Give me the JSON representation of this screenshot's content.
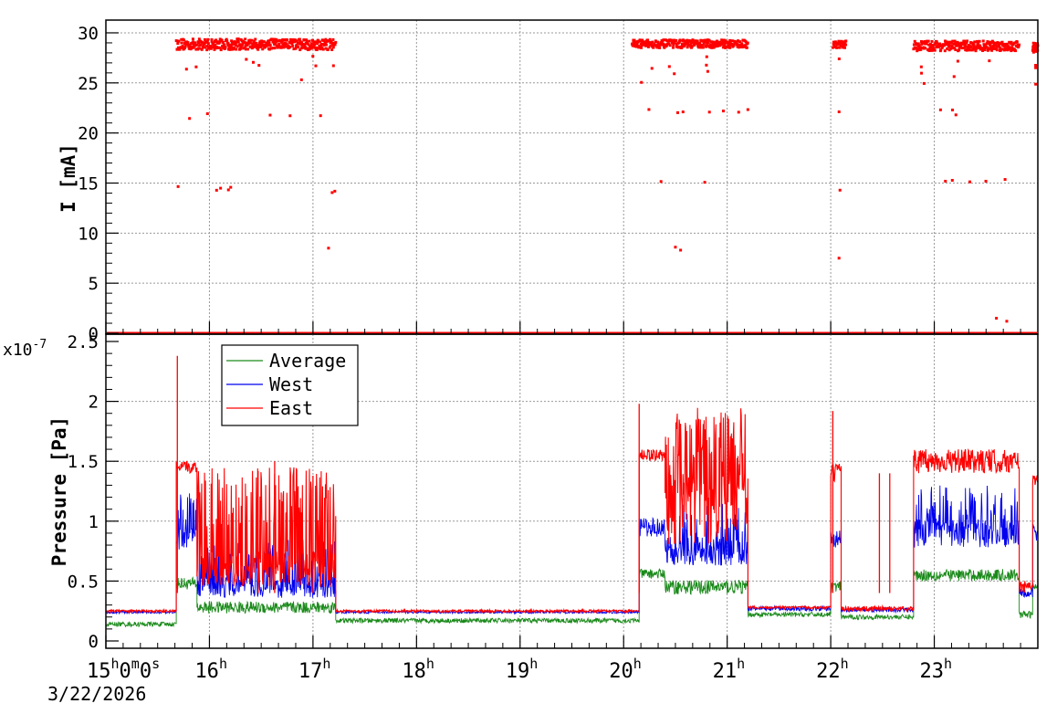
{
  "chart_data": [
    {
      "type": "scatter",
      "panel": "top",
      "ylabel": "I [mA]",
      "ylim": [
        0,
        31
      ],
      "yticks": [
        "0",
        "5",
        "10",
        "15",
        "20",
        "25",
        "30"
      ],
      "xlim_hours": [
        15,
        24
      ],
      "grid": true,
      "series": [
        {
          "color": "#ff0000",
          "segments": [
            {
              "x": [
                15.68,
                17.22
              ],
              "main_y": [
                28.3,
                29.4
              ],
              "sparse_y": [
                21.8,
                14.4
              ]
            },
            {
              "x": [
                20.08,
                21.2
              ],
              "main_y": [
                28.5,
                29.3
              ],
              "sparse_y": [
                22.0,
                14.8
              ]
            },
            {
              "x": [
                22.02,
                22.15
              ],
              "main_y": [
                28.5,
                29.2
              ],
              "sparse_y": [
                21.8,
                14.4
              ]
            },
            {
              "x": [
                22.8,
                23.82
              ],
              "main_y": [
                28.2,
                29.2
              ],
              "sparse_y": [
                22.0,
                15.5
              ]
            },
            {
              "x": [
                23.95,
                24.0
              ],
              "main_y": [
                28.0,
                29.0
              ],
              "sparse_y": [
                26.5
              ]
            }
          ],
          "outliers": [
            [
              17.15,
              8.5
            ],
            [
              20.5,
              8.6
            ],
            [
              20.55,
              8.3
            ],
            [
              22.08,
              7.5
            ],
            [
              23.6,
              1.5
            ],
            [
              23.7,
              1.2
            ]
          ],
          "baseline": 0
        }
      ]
    },
    {
      "type": "line",
      "panel": "bottom",
      "ylabel": "Pressure [Pa]",
      "yscale_label": "x10",
      "yscale_exp": "-7",
      "ylim": [
        0,
        2.5
      ],
      "yticks": [
        "0",
        "0.5",
        "1",
        "1.5",
        "2",
        "2.5"
      ],
      "xlim_hours": [
        15,
        24
      ],
      "xticks": [
        {
          "hour": 15,
          "label": "15",
          "sup": "h",
          "extra": "0",
          "sup2": "m",
          "extra2": "0",
          "sup3": "s"
        },
        {
          "hour": 16,
          "label": "16",
          "sup": "h"
        },
        {
          "hour": 17,
          "label": "17",
          "sup": "h"
        },
        {
          "hour": 18,
          "label": "18",
          "sup": "h"
        },
        {
          "hour": 19,
          "label": "19",
          "sup": "h"
        },
        {
          "hour": 20,
          "label": "20",
          "sup": "h"
        },
        {
          "hour": 21,
          "label": "21",
          "sup": "h"
        },
        {
          "hour": 22,
          "label": "22",
          "sup": "h"
        },
        {
          "hour": 23,
          "label": "23",
          "sup": "h"
        }
      ],
      "date_label": "3/22/2026",
      "grid": true,
      "legend_position": "top-left",
      "series": [
        {
          "name": "Average",
          "color": "#1a8a1a",
          "segments": [
            [
              15.0,
              15.68,
              0.14,
              0.02
            ],
            [
              15.68,
              15.88,
              0.48,
              0.05
            ],
            [
              15.88,
              17.22,
              0.28,
              0.05
            ],
            [
              17.22,
              20.15,
              0.17,
              0.02
            ],
            [
              20.15,
              20.4,
              0.56,
              0.04
            ],
            [
              20.4,
              21.2,
              0.45,
              0.06
            ],
            [
              21.2,
              22.0,
              0.22,
              0.02
            ],
            [
              22.0,
              22.1,
              0.45,
              0.05
            ],
            [
              22.1,
              22.8,
              0.2,
              0.02
            ],
            [
              22.8,
              23.82,
              0.55,
              0.05
            ],
            [
              23.82,
              23.95,
              0.22,
              0.03
            ],
            [
              23.95,
              24.0,
              0.45,
              0.04
            ]
          ]
        },
        {
          "name": "West",
          "color": "#0000ee",
          "segments": [
            [
              15.0,
              15.68,
              0.24,
              0.01
            ],
            [
              15.68,
              15.88,
              0.85,
              0.09
            ],
            [
              15.88,
              17.22,
              0.45,
              0.09
            ],
            [
              17.22,
              20.15,
              0.24,
              0.01
            ],
            [
              20.15,
              20.4,
              0.95,
              0.08
            ],
            [
              20.4,
              21.2,
              0.75,
              0.12
            ],
            [
              21.2,
              22.0,
              0.27,
              0.02
            ],
            [
              22.0,
              22.1,
              0.85,
              0.08
            ],
            [
              22.1,
              22.8,
              0.26,
              0.02
            ],
            [
              22.8,
              23.82,
              0.9,
              0.12
            ],
            [
              23.82,
              23.95,
              0.4,
              0.04
            ],
            [
              23.95,
              24.0,
              0.9,
              0.08
            ]
          ]
        },
        {
          "name": "East",
          "color": "#ff0000",
          "segments": [
            [
              15.0,
              15.68,
              0.25,
              0.01
            ],
            [
              15.68,
              15.88,
              1.45,
              0.05
            ],
            [
              15.88,
              17.22,
              0.6,
              0.15
            ],
            [
              17.22,
              20.15,
              0.25,
              0.01
            ],
            [
              20.15,
              20.4,
              1.55,
              0.05
            ],
            [
              20.4,
              21.2,
              1.1,
              0.3
            ],
            [
              21.2,
              22.0,
              0.28,
              0.01
            ],
            [
              22.0,
              22.1,
              1.4,
              0.08
            ],
            [
              22.1,
              22.8,
              0.27,
              0.02
            ],
            [
              22.8,
              23.82,
              1.5,
              0.1
            ],
            [
              23.82,
              23.95,
              0.45,
              0.05
            ],
            [
              23.95,
              24.0,
              1.35,
              0.05
            ]
          ],
          "spikes": [
            [
              15.69,
              2.38
            ],
            [
              16.47,
              1.42
            ],
            [
              16.63,
              1.5
            ],
            [
              17.0,
              1.38
            ],
            [
              20.15,
              1.98
            ],
            [
              22.02,
              1.92
            ],
            [
              22.47,
              1.4
            ],
            [
              22.57,
              1.4
            ]
          ]
        }
      ]
    }
  ]
}
